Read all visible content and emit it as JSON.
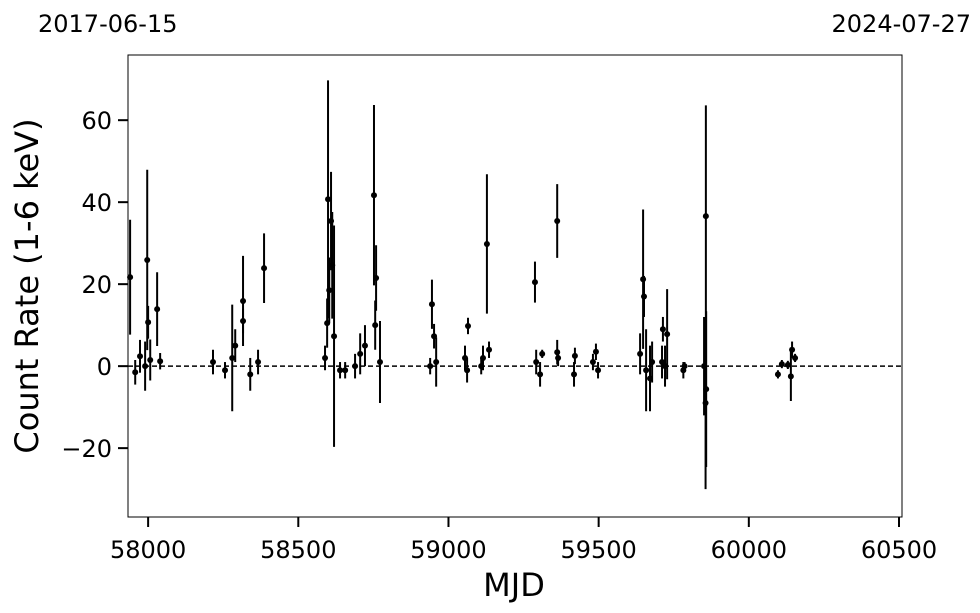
{
  "chart_data": {
    "type": "errorbar",
    "top_labels": [
      "2017-06-15",
      "2024-07-27"
    ],
    "xlabel": "MJD",
    "ylabel": "Count Rate (1-6 keV)",
    "xlim": [
      57933,
      60510
    ],
    "ylim": [
      -36.8,
      75.9
    ],
    "xticks": [
      58000,
      58500,
      59000,
      59500,
      60000,
      60500
    ],
    "yticks": [
      {
        "value": -20,
        "label": "−20"
      },
      0,
      20,
      40,
      60
    ],
    "reference_line": 0,
    "series": [
      {
        "color": "#000000",
        "x": [
          57940,
          57957,
          57973,
          57990,
          57997,
          58000,
          58007,
          58030,
          58040,
          58216,
          58256,
          58280,
          58290,
          58316,
          58316,
          58340,
          58366,
          58386,
          58589,
          58596,
          58599,
          58603,
          58609,
          58613,
          58619,
          58639,
          58656,
          58689,
          58706,
          58722,
          58752,
          58756,
          58759,
          58772,
          58939,
          58945,
          58952,
          58959,
          59055,
          59062,
          59065,
          59109,
          59115,
          59128,
          59135,
          59288,
          59292,
          59305,
          59312,
          59362,
          59362,
          59365,
          59418,
          59421,
          59481,
          59491,
          59498,
          59638,
          59648,
          59651,
          59658,
          59671,
          59678,
          59711,
          59714,
          59721,
          59728,
          59782,
          59786,
          59851,
          59856,
          59857,
          59858,
          60097,
          60110,
          60130,
          60140,
          60144,
          60154
        ],
        "y": [
          21.7,
          -1.5,
          2.4,
          0,
          25.9,
          10.7,
          1.5,
          13.9,
          1.2,
          1,
          -1,
          2,
          5,
          15.9,
          11,
          -2,
          1,
          23.9,
          2,
          10.5,
          40.7,
          18.5,
          35.4,
          24.6,
          7.3,
          -1,
          -1,
          0,
          3,
          5,
          41.7,
          10,
          21.5,
          1,
          0,
          15.1,
          7.3,
          1,
          2,
          -1,
          9.8,
          0,
          2,
          29.8,
          4,
          20.5,
          1,
          -2,
          3,
          35.4,
          3.4,
          2,
          -2,
          2.5,
          1,
          3.5,
          -1,
          3,
          21.2,
          17,
          -1,
          -3,
          1,
          1,
          9,
          0,
          7.8,
          -1,
          0,
          0,
          -9,
          36.6,
          -5.6,
          -2,
          0.5,
          0.3,
          -2.5,
          4,
          2
        ],
        "yerr": [
          14,
          3,
          4,
          6,
          22,
          4,
          5,
          9,
          2,
          3,
          2,
          13,
          4,
          11,
          3,
          4,
          3,
          8.5,
          3,
          6,
          29,
          8,
          12,
          13,
          27,
          2,
          2,
          3,
          5,
          5,
          22,
          6,
          8,
          10,
          2,
          6,
          3,
          6,
          3,
          3,
          2,
          2,
          3,
          17,
          2,
          5,
          3,
          3,
          1,
          9,
          3,
          2,
          3,
          2,
          2,
          2,
          2,
          5,
          17,
          5,
          10,
          8,
          5,
          4,
          3,
          5,
          11,
          2,
          1,
          12,
          21,
          27,
          19,
          1,
          1,
          1,
          6,
          2,
          1
        ]
      }
    ]
  }
}
